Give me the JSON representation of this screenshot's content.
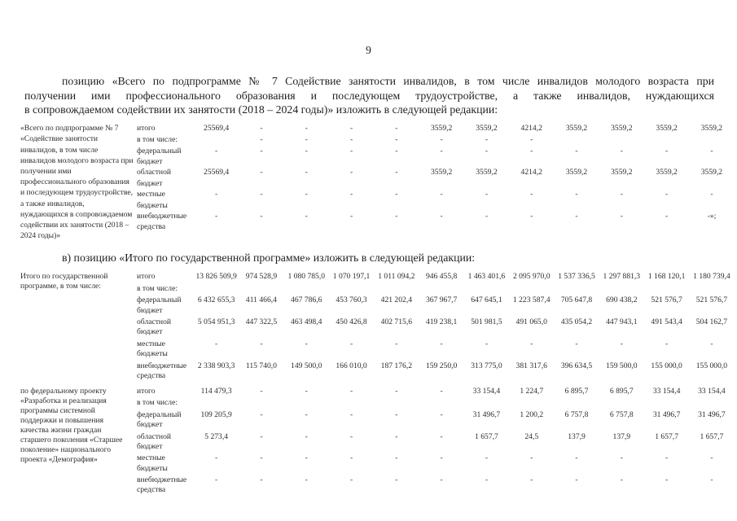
{
  "page": {
    "number": "9"
  },
  "paragraphs": {
    "p1_lines": [
      "позицию «Всего по подпрограмме № 7 Содействие занятости инвалидов, в том числе инвалидов молодого возраста при",
      "получении ими профессионального образования и последующем трудоустройстве, а также инвалидов, нуждающихся",
      "в сопровождаемом содействии их занятости (2018 – 2024 годы)» изложить в следующей редакции:"
    ],
    "p2": "в) позицию «Итого по государственной программе» изложить в следующей редакции:"
  },
  "table1": {
    "groups": [
      {
        "label": "«Всего по подпрограмме № 7 «Содействие занятости инвалидов, в том числе инвалидов молодого возраста при получении ими профессионального образования и последующем трудоустройстве, а также инвалидов, нуждающихся в сопровождаемом содействии их занятости (2018 – 2024 годы)»",
        "rows": [
          {
            "type": "итого",
            "values": [
              "25569,4",
              "-",
              "-",
              "-",
              "-",
              "3559,2",
              "3559,2",
              "4214,2",
              "3559,2",
              "3559,2",
              "3559,2",
              "3559,2"
            ]
          },
          {
            "type": "в том числе:",
            "values": [
              "",
              "-",
              "-",
              "-",
              "-",
              "-",
              "-",
              "-",
              "",
              "",
              "",
              ""
            ]
          },
          {
            "type": "федеральный бюджет",
            "values": [
              "-",
              "-",
              "-",
              "-",
              "-",
              "-",
              "-",
              "-",
              "-",
              "-",
              "-",
              "-"
            ]
          },
          {
            "type": "областной бюджет",
            "values": [
              "25569,4",
              "-",
              "-",
              "-",
              "-",
              "3559,2",
              "3559,2",
              "4214,2",
              "3559,2",
              "3559,2",
              "3559,2",
              "3559,2"
            ]
          },
          {
            "type": "местные бюджеты",
            "values": [
              "-",
              "-",
              "-",
              "-",
              "-",
              "-",
              "-",
              "-",
              "-",
              "-",
              "-",
              "-"
            ]
          },
          {
            "type": "внебюджетные средства",
            "values": [
              "-",
              "-",
              "-",
              "-",
              "-",
              "-",
              "-",
              "-",
              "-",
              "-",
              "-",
              "-»;"
            ]
          }
        ]
      }
    ]
  },
  "table2": {
    "groups": [
      {
        "label": "Итого по государственной программе, в том числе:",
        "rows": [
          {
            "type": "итого",
            "values": [
              "13 826 509,9",
              "974 528,9",
              "1 080 785,0",
              "1 070 197,1",
              "1 011 094,2",
              "946 455,8",
              "1 463 401,6",
              "2 095 970,0",
              "1 537 336,5",
              "1 297 881,3",
              "1 168 120,1",
              "1 180 739,4"
            ]
          },
          {
            "type": "в том числе:",
            "values": [
              "",
              "",
              "",
              "",
              "",
              "",
              "",
              "",
              "",
              "",
              "",
              ""
            ]
          },
          {
            "type": "федеральный бюджет",
            "values": [
              "6 432 655,3",
              "411 466,4",
              "467 786,6",
              "453 760,3",
              "421 202,4",
              "367 967,7",
              "647 645,1",
              "1 223 587,4",
              "705 647,8",
              "690 438,2",
              "521 576,7",
              "521 576,7"
            ]
          },
          {
            "type": "областной бюджет",
            "values": [
              "5 054 951,3",
              "447 322,5",
              "463 498,4",
              "450 426,8",
              "402 715,6",
              "419 238,1",
              "501 981,5",
              "491 065,0",
              "435 054,2",
              "447 943,1",
              "491 543,4",
              "504 162,7"
            ]
          },
          {
            "type": "местные бюджеты",
            "values": [
              "-",
              "-",
              "-",
              "-",
              "-",
              "-",
              "-",
              "-",
              "-",
              "-",
              "-",
              "-"
            ]
          },
          {
            "type": "внебюджетные средства",
            "values": [
              "2 338 903,3",
              "115 740,0",
              "149 500,0",
              "166 010,0",
              "187 176,2",
              "159 250,0",
              "313 775,0",
              "381 317,6",
              "396 634,5",
              "159 500,0",
              "155 000,0",
              "155 000,0"
            ]
          }
        ]
      },
      {
        "label": "по федеральному проекту «Разработка и реализация программы системной поддержки и повышения качества жизни граждан старшего поколения «Старшее поколение» национального проекта «Демография»",
        "rows": [
          {
            "type": "итого",
            "values": [
              "114 479,3",
              "-",
              "-",
              "-",
              "-",
              "-",
              "33 154,4",
              "1 224,7",
              "6 895,7",
              "6 895,7",
              "33 154,4",
              "33 154,4"
            ]
          },
          {
            "type": "в том числе:",
            "values": [
              "",
              "",
              "",
              "",
              "",
              "",
              "",
              "",
              "",
              "",
              "",
              ""
            ]
          },
          {
            "type": "федеральный бюджет",
            "values": [
              "109 205,9",
              "-",
              "-",
              "-",
              "-",
              "-",
              "31 496,7",
              "1 200,2",
              "6 757,8",
              "6 757,8",
              "31 496,7",
              "31 496,7"
            ]
          },
          {
            "type": "областной бюджет",
            "values": [
              "5 273,4",
              "-",
              "-",
              "-",
              "-",
              "-",
              "1 657,7",
              "24,5",
              "137,9",
              "137,9",
              "1 657,7",
              "1 657,7"
            ]
          },
          {
            "type": "местные бюджеты",
            "values": [
              "-",
              "-",
              "-",
              "-",
              "-",
              "-",
              "-",
              "-",
              "-",
              "-",
              "-",
              "-"
            ]
          },
          {
            "type": "внебюджетные средства",
            "values": [
              "-",
              "-",
              "-",
              "-",
              "-",
              "-",
              "-",
              "-",
              "-",
              "-",
              "-",
              "-"
            ]
          }
        ]
      }
    ]
  }
}
